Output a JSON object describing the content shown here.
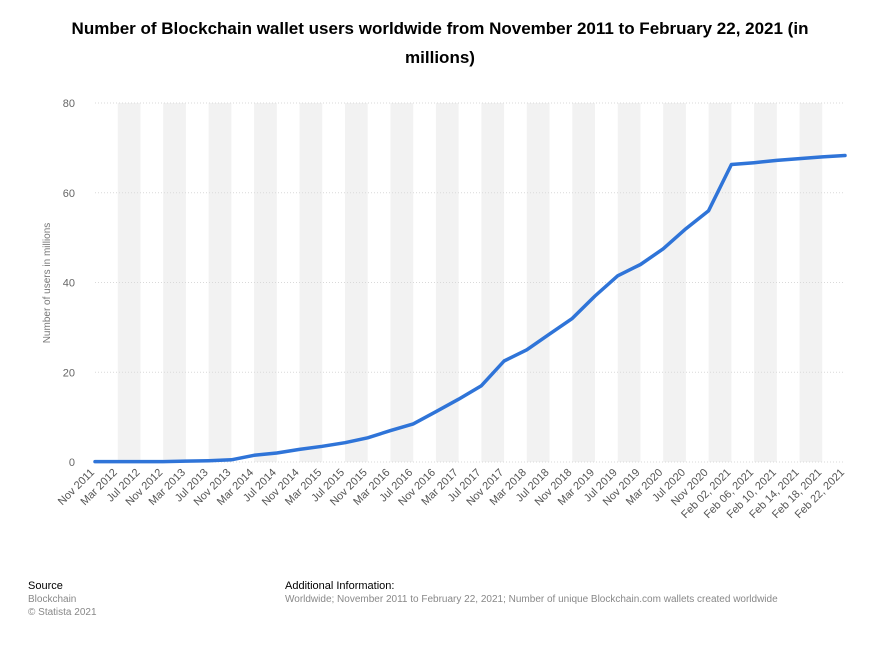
{
  "header": {
    "title": "Number of Blockchain wallet users worldwide from November 2011 to February 22, 2021 (in millions)"
  },
  "footer": {
    "source_heading": "Source",
    "source_name": "Blockchain",
    "copyright": "© Statista 2021",
    "info_heading": "Additional Information:",
    "info_text": "Worldwide; November 2011 to February 22, 2021; Number of unique Blockchain.com wallets created worldwide"
  },
  "colors": {
    "line": "#2f74d8",
    "band": "#f2f2f2",
    "grid": "#d9d9d9"
  },
  "chart_data": {
    "type": "line",
    "title": "Number of Blockchain wallet users worldwide from November 2011 to February 22, 2021 (in millions)",
    "ylabel": "Number of users in millions",
    "ylim": [
      0,
      80
    ],
    "yticks": [
      0,
      20,
      40,
      60,
      80
    ],
    "grid": true,
    "categories": [
      "Nov 2011",
      "Mar 2012",
      "Jul 2012",
      "Nov 2012",
      "Mar 2013",
      "Jul 2013",
      "Nov 2013",
      "Mar 2014",
      "Jul 2014",
      "Nov 2014",
      "Mar 2015",
      "Jul 2015",
      "Nov 2015",
      "Mar 2016",
      "Jul 2016",
      "Nov 2016",
      "Mar 2017",
      "Jul 2017",
      "Nov 2017",
      "Mar 2018",
      "Jul 2018",
      "Nov 2018",
      "Mar 2019",
      "Jul 2019",
      "Nov 2019",
      "Mar 2020",
      "Jul 2020",
      "Nov 2020",
      "Feb 02, 2021",
      "Feb 06, 2021",
      "Feb 10, 2021",
      "Feb 14, 2021",
      "Feb 18, 2021",
      "Feb 22, 2021"
    ],
    "series": [
      {
        "values": [
          0.1,
          0.1,
          0.1,
          0.1,
          0.2,
          0.3,
          0.5,
          1.5,
          2.0,
          2.8,
          3.5,
          4.3,
          5.4,
          7.0,
          8.5,
          11.2,
          14.0,
          17.0,
          22.5,
          25.0,
          28.5,
          32.0,
          37.0,
          41.5,
          44.0,
          47.5,
          52.0,
          56.0,
          66.3,
          66.7,
          67.2,
          67.6,
          68.0,
          68.3
        ]
      }
    ]
  }
}
